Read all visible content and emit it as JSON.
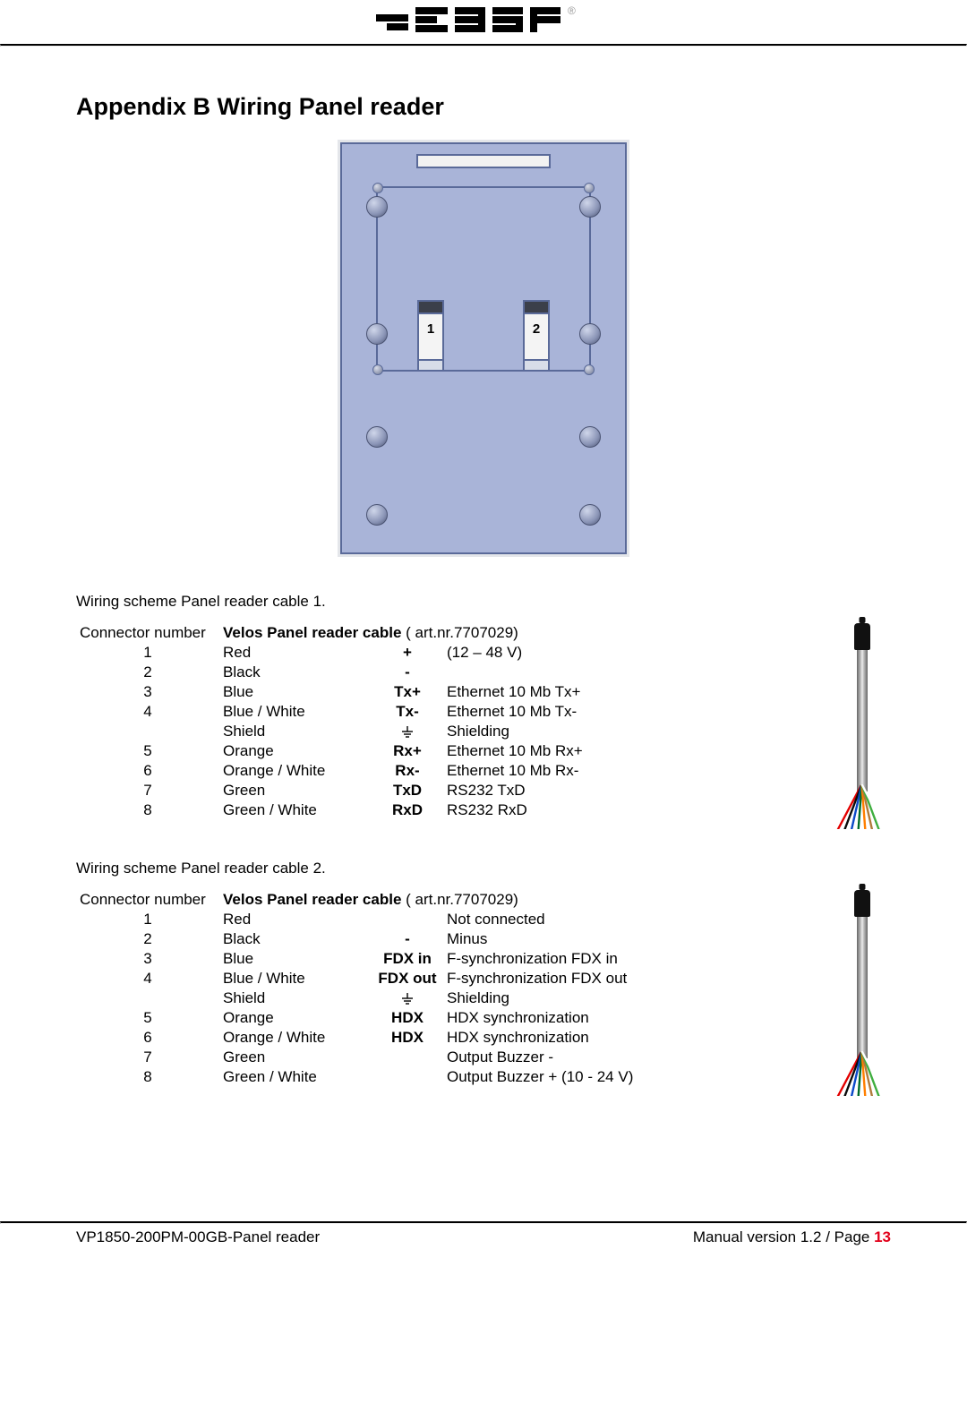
{
  "header": {
    "logo_alt": "nedap"
  },
  "title": "Appendix B   Wiring Panel reader",
  "figure": {
    "label1": "1",
    "label2": "2"
  },
  "section1": {
    "caption": "Wiring scheme Panel reader cable 1.",
    "col_connector": "Connector number",
    "cable_head_bold": "Velos Panel reader cable",
    "cable_head_art": " ( art.nr.7707029)",
    "rows": [
      {
        "n": "1",
        "color": "Red",
        "sym": "+",
        "desc": "(12 – 48 V)"
      },
      {
        "n": "2",
        "color": "Black",
        "sym": "-",
        "desc": ""
      },
      {
        "n": "3",
        "color": "Blue",
        "sym": "Tx+",
        "desc": "Ethernet 10 Mb Tx+"
      },
      {
        "n": "4",
        "color": "Blue / White",
        "sym": "Tx-",
        "desc": "Ethernet 10 Mb Tx-"
      },
      {
        "n": "",
        "color": "Shield",
        "sym": "GND",
        "desc": "Shielding"
      },
      {
        "n": "5",
        "color": "Orange",
        "sym": "Rx+",
        "desc": "Ethernet 10 Mb Rx+"
      },
      {
        "n": "6",
        "color": "Orange / White",
        "sym": "Rx-",
        "desc": "Ethernet 10 Mb Rx-"
      },
      {
        "n": "7",
        "color": "Green",
        "sym": "TxD",
        "desc": "RS232 TxD"
      },
      {
        "n": "8",
        "color": "Green / White",
        "sym": "RxD",
        "desc": "RS232 RxD"
      }
    ]
  },
  "section2": {
    "caption": "Wiring scheme Panel reader cable 2.",
    "col_connector": "Connector number",
    "cable_head_bold": "Velos Panel reader cable",
    "cable_head_art": " ( art.nr.7707029)",
    "rows": [
      {
        "n": "1",
        "color": "Red",
        "sym": "",
        "desc": "Not connected"
      },
      {
        "n": "2",
        "color": "Black",
        "sym": "-",
        "desc": "Minus"
      },
      {
        "n": "3",
        "color": "Blue",
        "sym": "FDX in",
        "desc": "F-synchronization FDX in"
      },
      {
        "n": "4",
        "color": "Blue / White",
        "sym": "FDX out",
        "desc": "F-synchronization FDX out"
      },
      {
        "n": "",
        "color": "Shield",
        "sym": "GND",
        "desc": "Shielding"
      },
      {
        "n": "5",
        "color": "Orange",
        "sym": "HDX",
        "desc": "HDX synchronization"
      },
      {
        "n": "6",
        "color": "Orange / White",
        "sym": "HDX",
        "desc": "HDX synchronization"
      },
      {
        "n": "7",
        "color": "Green",
        "sym": "",
        "desc": "Output Buzzer -"
      },
      {
        "n": "8",
        "color": "Green / White",
        "sym": "",
        "desc": "Output Buzzer + (10 - 24 V)"
      }
    ]
  },
  "cable_wire_colors": [
    "#e30000",
    "#0b0b0b",
    "#0b49c9",
    "#006b2b",
    "#ff7f00",
    "#b07a3a",
    "#3fae3f",
    "#ffffff"
  ],
  "footer": {
    "left": "VP1850-200PM-00GB-Panel reader",
    "right_prefix": "Manual version 1.2 / Page ",
    "pagenum": "13"
  }
}
